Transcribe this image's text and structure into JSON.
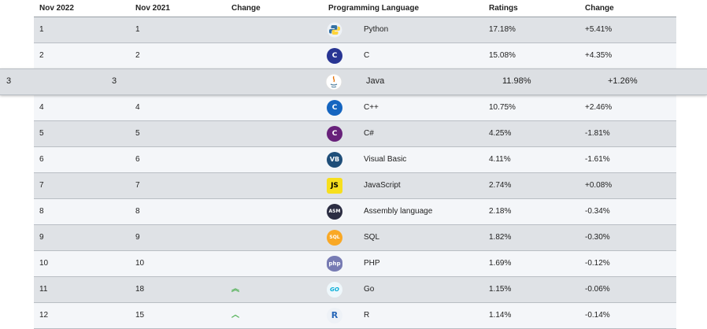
{
  "header": {
    "nov2022": "Nov 2022",
    "nov2021": "Nov 2021",
    "change": "Change",
    "language": "Programming Language",
    "ratings": "Ratings",
    "change2": "Change"
  },
  "rows": [
    {
      "nov2022": "1",
      "nov2021": "1",
      "arrow": "",
      "icon": "python-icon",
      "icon_text": "",
      "language": "Python",
      "rating": "17.18%",
      "delta": "+5.41%"
    },
    {
      "nov2022": "2",
      "nov2021": "2",
      "arrow": "",
      "icon": "c-icon",
      "icon_text": "C",
      "language": "C",
      "rating": "15.08%",
      "delta": "+4.35%"
    },
    {
      "nov2022": "3",
      "nov2021": "3",
      "arrow": "",
      "icon": "java-icon",
      "icon_text": "",
      "language": "Java",
      "rating": "11.98%",
      "delta": "+1.26%"
    },
    {
      "nov2022": "4",
      "nov2021": "4",
      "arrow": "",
      "icon": "cpp-icon",
      "icon_text": "C",
      "language": "C++",
      "rating": "10.75%",
      "delta": "+2.46%"
    },
    {
      "nov2022": "5",
      "nov2021": "5",
      "arrow": "",
      "icon": "csharp-icon",
      "icon_text": "C",
      "language": "C#",
      "rating": "4.25%",
      "delta": "-1.81%"
    },
    {
      "nov2022": "6",
      "nov2021": "6",
      "arrow": "",
      "icon": "visual-basic-icon",
      "icon_text": "VB",
      "language": "Visual Basic",
      "rating": "4.11%",
      "delta": "-1.61%"
    },
    {
      "nov2022": "7",
      "nov2021": "7",
      "arrow": "",
      "icon": "javascript-icon",
      "icon_text": "JS",
      "language": "JavaScript",
      "rating": "2.74%",
      "delta": "+0.08%"
    },
    {
      "nov2022": "8",
      "nov2021": "8",
      "arrow": "",
      "icon": "assembly-icon",
      "icon_text": "ASM",
      "language": "Assembly language",
      "rating": "2.18%",
      "delta": "-0.34%"
    },
    {
      "nov2022": "9",
      "nov2021": "9",
      "arrow": "",
      "icon": "sql-icon",
      "icon_text": "SQL",
      "language": "SQL",
      "rating": "1.82%",
      "delta": "-0.30%"
    },
    {
      "nov2022": "10",
      "nov2021": "10",
      "arrow": "",
      "icon": "php-icon",
      "icon_text": "php",
      "language": "PHP",
      "rating": "1.69%",
      "delta": "-0.12%"
    },
    {
      "nov2022": "11",
      "nov2021": "18",
      "arrow": "double-up",
      "icon": "go-icon",
      "icon_text": "GO",
      "language": "Go",
      "rating": "1.15%",
      "delta": "-0.06%"
    },
    {
      "nov2022": "12",
      "nov2021": "15",
      "arrow": "up",
      "icon": "r-icon",
      "icon_text": "R",
      "language": "R",
      "rating": "1.14%",
      "delta": "-0.14%"
    }
  ],
  "colors": {
    "python": "#3572A5",
    "c": "#283593",
    "cpp": "#1565c0",
    "csharp": "#68217a",
    "vb": "#1f4e79",
    "js": "#f7df1e",
    "asm": "#2b2d42",
    "sql": "#f9a825",
    "php": "#777bb3",
    "go": "#00acd7",
    "r": "#2767b8",
    "arrow_up": "#4caf50"
  }
}
